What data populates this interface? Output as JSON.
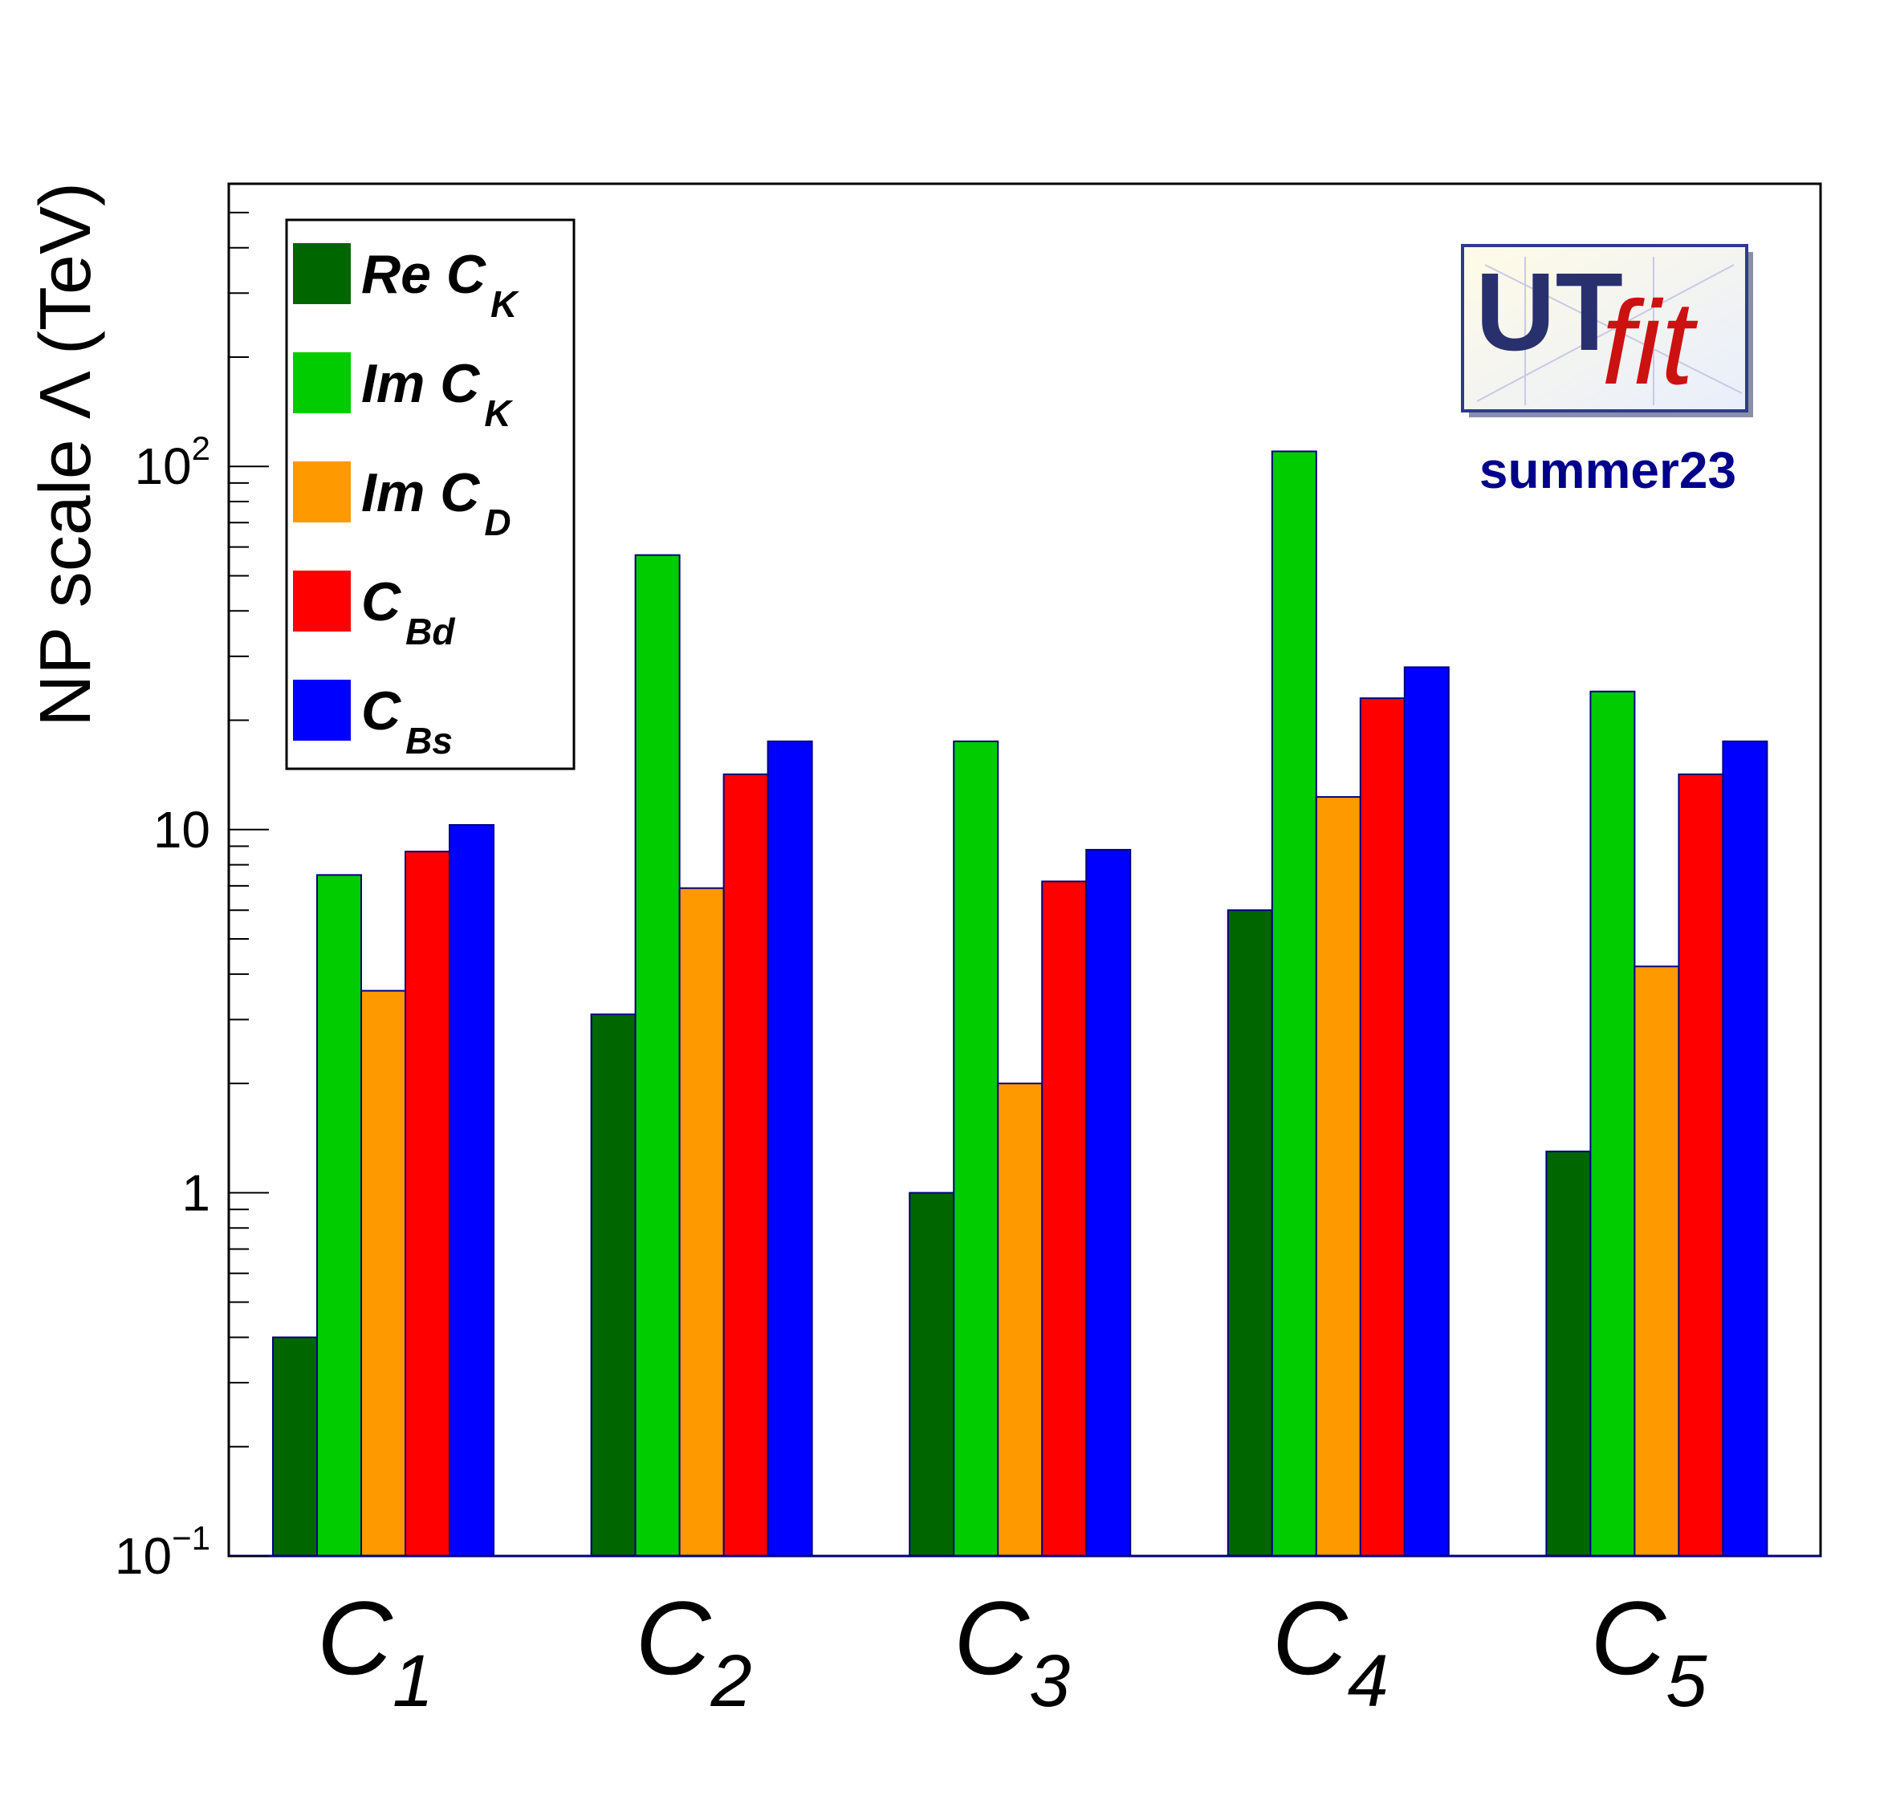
{
  "chart_data": {
    "type": "bar",
    "ylabel": "NP scale Λ (TeV)",
    "yscale": "log",
    "ylim": [
      0.1,
      600
    ],
    "y_ticks": [
      {
        "value": 0.1,
        "base": "10",
        "exp": "−1"
      },
      {
        "value": 1,
        "base": "1",
        "exp": ""
      },
      {
        "value": 10,
        "base": "10",
        "exp": ""
      },
      {
        "value": 100,
        "base": "10",
        "exp": "2"
      }
    ],
    "categories": [
      {
        "main": "C",
        "sub": "1"
      },
      {
        "main": "C",
        "sub": "2"
      },
      {
        "main": "C",
        "sub": "3"
      },
      {
        "main": "C",
        "sub": "4"
      },
      {
        "main": "C",
        "sub": "5"
      }
    ],
    "series": [
      {
        "main": "Re C",
        "sub": "K",
        "color": "#006600",
        "values": [
          0.4,
          3.1,
          1.0,
          6.0,
          1.3
        ]
      },
      {
        "main": "Im C",
        "sub": "K",
        "color": "#00cc00",
        "values": [
          7.5,
          57,
          17.5,
          110,
          24
        ]
      },
      {
        "main": "Im C",
        "sub": "D",
        "color": "#ff9900",
        "values": [
          3.6,
          6.9,
          2.0,
          12.3,
          4.2
        ]
      },
      {
        "main": "C",
        "sub": "Bd",
        "color": "#ff0000",
        "values": [
          8.7,
          14.2,
          7.2,
          23,
          14.2
        ]
      },
      {
        "main": "C",
        "sub": "Bs",
        "color": "#0000ff",
        "values": [
          10.3,
          17.5,
          8.8,
          28,
          17.5
        ]
      }
    ],
    "legend_placement": "top-left",
    "grid": false,
    "bar_outline_color": "#000080"
  },
  "logo": {
    "text_main": "UT",
    "text_script": "fit",
    "edition": "summer23",
    "edition_color": "#00008b"
  }
}
